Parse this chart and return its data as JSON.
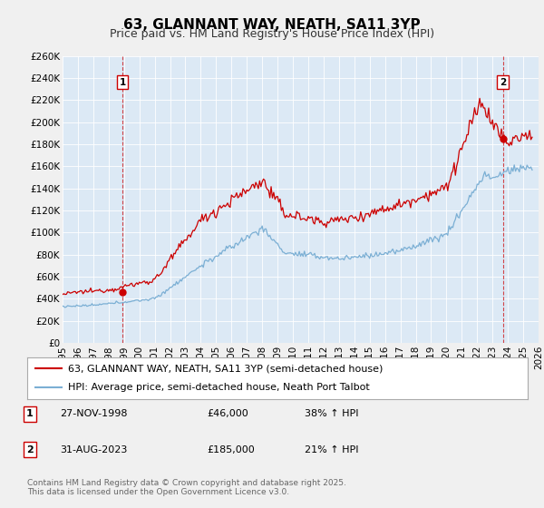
{
  "title": "63, GLANNANT WAY, NEATH, SA11 3YP",
  "subtitle": "Price paid vs. HM Land Registry's House Price Index (HPI)",
  "xlim": [
    1995.0,
    2026.0
  ],
  "ylim": [
    0,
    260000
  ],
  "yticks": [
    0,
    20000,
    40000,
    60000,
    80000,
    100000,
    120000,
    140000,
    160000,
    180000,
    200000,
    220000,
    240000,
    260000
  ],
  "ytick_labels": [
    "£0",
    "£20K",
    "£40K",
    "£60K",
    "£80K",
    "£100K",
    "£120K",
    "£140K",
    "£160K",
    "£180K",
    "£200K",
    "£220K",
    "£240K",
    "£260K"
  ],
  "xticks": [
    1995,
    1996,
    1997,
    1998,
    1999,
    2000,
    2001,
    2002,
    2003,
    2004,
    2005,
    2006,
    2007,
    2008,
    2009,
    2010,
    2011,
    2012,
    2013,
    2014,
    2015,
    2016,
    2017,
    2018,
    2019,
    2020,
    2021,
    2022,
    2023,
    2024,
    2025,
    2026
  ],
  "sale1_x": 1998.9,
  "sale1_y": 46000,
  "sale1_label": "1",
  "sale1_date": "27-NOV-1998",
  "sale1_price": "£46,000",
  "sale1_hpi": "38% ↑ HPI",
  "sale2_x": 2023.67,
  "sale2_y": 185000,
  "sale2_label": "2",
  "sale2_date": "31-AUG-2023",
  "sale2_price": "£185,000",
  "sale2_hpi": "21% ↑ HPI",
  "line1_color": "#cc0000",
  "line2_color": "#7bafd4",
  "vline_color": "#cc0000",
  "background_color": "#f0f0f0",
  "plot_bg_color": "#dce9f5",
  "grid_color": "#ffffff",
  "legend1_label": "63, GLANNANT WAY, NEATH, SA11 3YP (semi-detached house)",
  "legend2_label": "HPI: Average price, semi-detached house, Neath Port Talbot",
  "footer": "Contains HM Land Registry data © Crown copyright and database right 2025.\nThis data is licensed under the Open Government Licence v3.0.",
  "title_fontsize": 11,
  "subtitle_fontsize": 9,
  "tick_fontsize": 7.5,
  "legend_fontsize": 8,
  "footer_fontsize": 6.5,
  "table_fontsize": 8
}
